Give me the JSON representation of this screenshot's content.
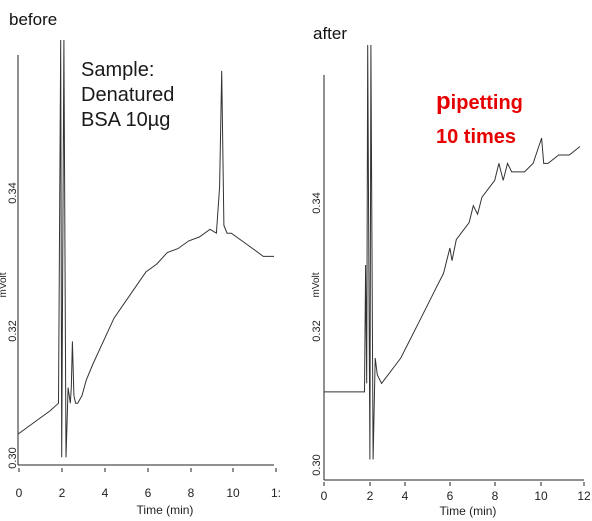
{
  "panels": [
    {
      "title": "before",
      "annotation": [
        "Sample:",
        "Denatured",
        "BSA 10µg"
      ]
    },
    {
      "title": "after",
      "annotation_first": "p",
      "annotation_rest": "ipetting",
      "annotation_line2": "10 times",
      "annotation_color": "#e60000"
    }
  ],
  "chart_data": [
    {
      "type": "line",
      "title": "before",
      "xlabel": "Time (min)",
      "ylabel": "mVolt",
      "xlim": [
        0,
        12
      ],
      "ylim": [
        0.3,
        0.355
      ],
      "xticks": [
        "0",
        "2",
        "4",
        "6",
        "8",
        "10",
        "1:"
      ],
      "yticks": [
        "0.30",
        "0.32",
        "0.34"
      ],
      "series": [
        {
          "x": [
            0,
            0.5,
            1.0,
            1.5,
            1.9,
            2.0,
            2.05,
            2.15,
            2.25,
            2.35,
            2.45,
            2.5,
            2.55,
            2.62,
            2.7,
            2.8,
            3.0,
            3.2,
            3.5,
            4.0,
            4.5,
            5.0,
            5.5,
            6.0,
            6.5,
            7.0,
            7.5,
            8.0,
            8.5,
            9.0,
            9.3,
            9.45,
            9.55,
            9.65,
            9.8,
            10.0,
            10.5,
            11.0,
            11.5,
            12.0
          ],
          "values": [
            0.304,
            0.305,
            0.306,
            0.307,
            0.308,
            0.355,
            0.301,
            0.355,
            0.301,
            0.31,
            0.308,
            0.31,
            0.316,
            0.309,
            0.308,
            0.308,
            0.309,
            0.311,
            0.313,
            0.316,
            0.319,
            0.321,
            0.323,
            0.325,
            0.326,
            0.3275,
            0.328,
            0.329,
            0.3295,
            0.3305,
            0.33,
            0.336,
            0.351,
            0.331,
            0.33,
            0.33,
            0.329,
            0.328,
            0.327,
            0.327
          ]
        }
      ]
    },
    {
      "type": "line",
      "title": "after",
      "xlabel": "Time (min)",
      "ylabel": "mVolt",
      "xlim": [
        0,
        12
      ],
      "ylim": [
        0.3,
        0.35
      ],
      "xticks": [
        "0",
        "2",
        "4",
        "6",
        "8",
        "10",
        "12"
      ],
      "yticks": [
        "0.30",
        "0.32",
        "0.34"
      ],
      "series": [
        {
          "x": [
            0,
            0.5,
            1.0,
            1.5,
            1.9,
            1.95,
            2.0,
            2.05,
            2.15,
            2.2,
            2.3,
            2.4,
            2.5,
            2.7,
            3.0,
            3.3,
            3.6,
            4.0,
            4.4,
            4.8,
            5.2,
            5.6,
            5.9,
            6.0,
            6.2,
            6.5,
            6.8,
            7.0,
            7.2,
            7.4,
            7.7,
            8.0,
            8.2,
            8.4,
            8.6,
            8.8,
            9.0,
            9.4,
            9.8,
            10.2,
            10.3,
            10.5,
            11.0,
            11.5,
            12.0
          ],
          "values": [
            0.309,
            0.309,
            0.309,
            0.309,
            0.309,
            0.324,
            0.31,
            0.35,
            0.301,
            0.35,
            0.301,
            0.313,
            0.311,
            0.31,
            0.311,
            0.312,
            0.313,
            0.315,
            0.317,
            0.319,
            0.321,
            0.323,
            0.326,
            0.3245,
            0.327,
            0.328,
            0.329,
            0.331,
            0.33,
            0.332,
            0.333,
            0.334,
            0.336,
            0.334,
            0.336,
            0.335,
            0.335,
            0.335,
            0.336,
            0.339,
            0.336,
            0.336,
            0.337,
            0.337,
            0.338
          ]
        }
      ]
    }
  ]
}
